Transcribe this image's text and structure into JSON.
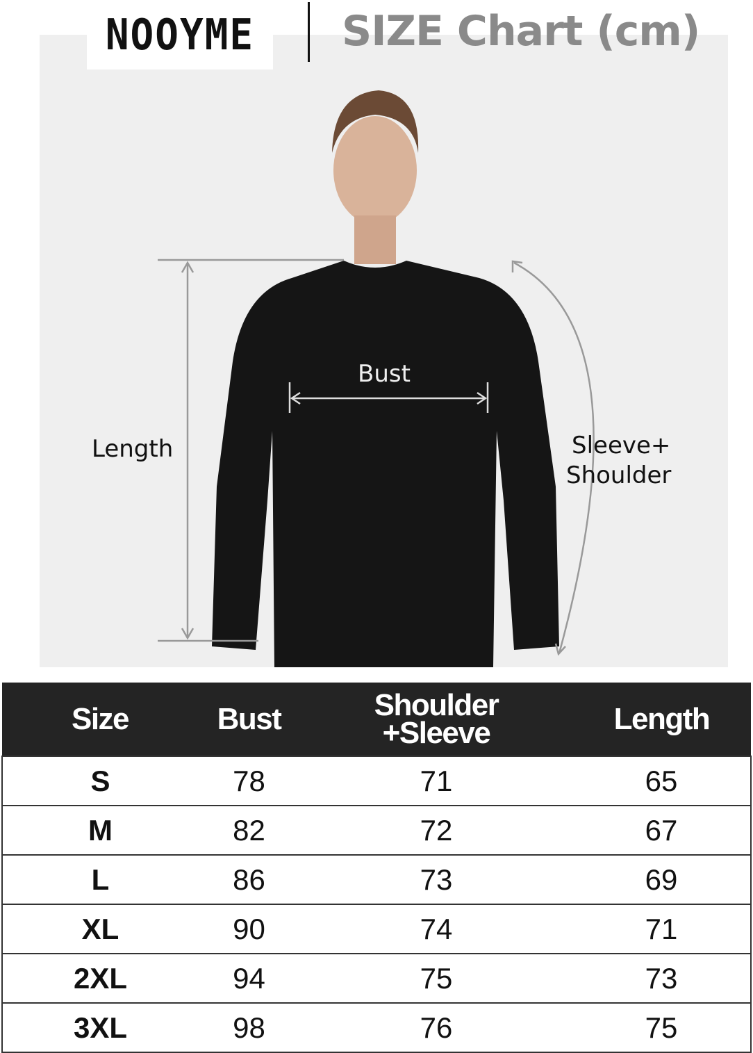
{
  "brand": "NOOYME",
  "title": "SIZE Chart (cm)",
  "figure": {
    "length_label": "Length",
    "bust_label": "Bust",
    "sleeve_label_line1": "Sleeve+",
    "sleeve_label_line2": "Shoulder"
  },
  "table": {
    "headers": [
      "Size",
      "Bust",
      "Shoulder",
      "+Sleeve",
      "Length"
    ],
    "rows": [
      [
        "S",
        "78",
        "71",
        "65"
      ],
      [
        "M",
        "82",
        "72",
        "67"
      ],
      [
        "L",
        "86",
        "73",
        "69"
      ],
      [
        "XL",
        "90",
        "74",
        "71"
      ],
      [
        "2XL",
        "94",
        "75",
        "73"
      ],
      [
        "3XL",
        "98",
        "76",
        "75"
      ]
    ]
  }
}
